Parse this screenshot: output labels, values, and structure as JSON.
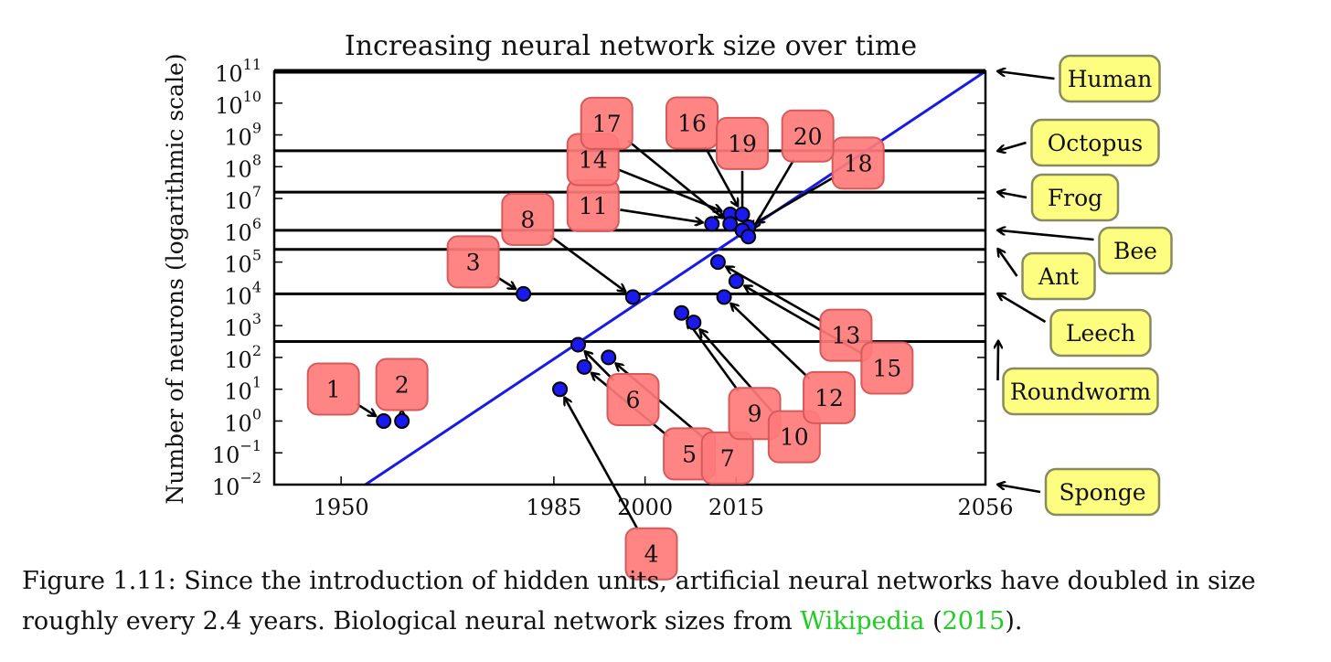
{
  "chart_data": {
    "type": "scatter",
    "title": "Increasing neural network size over time",
    "xlabel": "",
    "ylabel": "Number of neurons (logarithmic scale)",
    "y_scale": "log",
    "xlim": [
      1939,
      2056
    ],
    "ylim_exp": [
      -2,
      11
    ],
    "x_ticks": [
      {
        "value": 1950,
        "label": "1950"
      },
      {
        "value": 1985,
        "label": "1985"
      },
      {
        "value": 2000,
        "label": "2000"
      },
      {
        "value": 2015,
        "label": "2015"
      },
      {
        "value": 2056,
        "label": "2056"
      }
    ],
    "y_tick_exponents": [
      -2,
      -1,
      0,
      1,
      2,
      3,
      4,
      5,
      6,
      7,
      8,
      9,
      10,
      11
    ],
    "trend_line": {
      "color": "#1a1ae6",
      "start": {
        "x": 1954,
        "exp": -2
      },
      "end": {
        "x": 2056,
        "exp": 11
      }
    },
    "biological_levels": [
      {
        "name": "Human",
        "exp": 11
      },
      {
        "name": "Octopus",
        "exp": 8.5
      },
      {
        "name": "Frog",
        "exp": 7.2
      },
      {
        "name": "Bee",
        "exp": 6
      },
      {
        "name": "Ant",
        "exp": 5.4
      },
      {
        "name": "Leech",
        "exp": 4
      },
      {
        "name": "Roundworm",
        "exp": 2.5
      },
      {
        "name": "Sponge",
        "exp": -2
      }
    ],
    "networks": [
      {
        "id": "1",
        "x": 1957,
        "exp": 0
      },
      {
        "id": "2",
        "x": 1960,
        "exp": 0
      },
      {
        "id": "3",
        "x": 1980,
        "exp": 4
      },
      {
        "id": "4",
        "x": 1986,
        "exp": 1
      },
      {
        "id": "5",
        "x": 1990,
        "exp": 1.7
      },
      {
        "id": "6",
        "x": 1989,
        "exp": 2.4
      },
      {
        "id": "7",
        "x": 1994,
        "exp": 2
      },
      {
        "id": "8",
        "x": 1998,
        "exp": 3.9
      },
      {
        "id": "9",
        "x": 2006,
        "exp": 3.4
      },
      {
        "id": "10",
        "x": 2008,
        "exp": 3.1
      },
      {
        "id": "11",
        "x": 2011,
        "exp": 6.2
      },
      {
        "id": "12",
        "x": 2013,
        "exp": 3.9
      },
      {
        "id": "13",
        "x": 2012,
        "exp": 5
      },
      {
        "id": "14",
        "x": 2014,
        "exp": 6.5
      },
      {
        "id": "15",
        "x": 2015,
        "exp": 4.4
      },
      {
        "id": "16",
        "x": 2016,
        "exp": 6.5
      },
      {
        "id": "17",
        "x": 2014,
        "exp": 6.2
      },
      {
        "id": "18",
        "x": 2017,
        "exp": 6.1
      },
      {
        "id": "19",
        "x": 2016,
        "exp": 6
      },
      {
        "id": "20",
        "x": 2017,
        "exp": 5.8
      }
    ],
    "colors": {
      "point_fill": "#1a1aee",
      "network_label_fill": "#ff7b7b",
      "network_label_stroke": "#d65a5a",
      "bio_label_fill": "#fdfd80",
      "bio_label_stroke": "#8a8a60",
      "level_line": "#000000",
      "trend_line": "#1a1ae6"
    }
  },
  "caption": {
    "text_before": "Figure 1.11: Since the introduction of hidden units, artificial neural networks have doubled in size roughly every 2.4 years. Biological neural network sizes from ",
    "link_text": "Wikipedia",
    "paren_open": " (",
    "year_link": "2015",
    "paren_close": ")."
  }
}
